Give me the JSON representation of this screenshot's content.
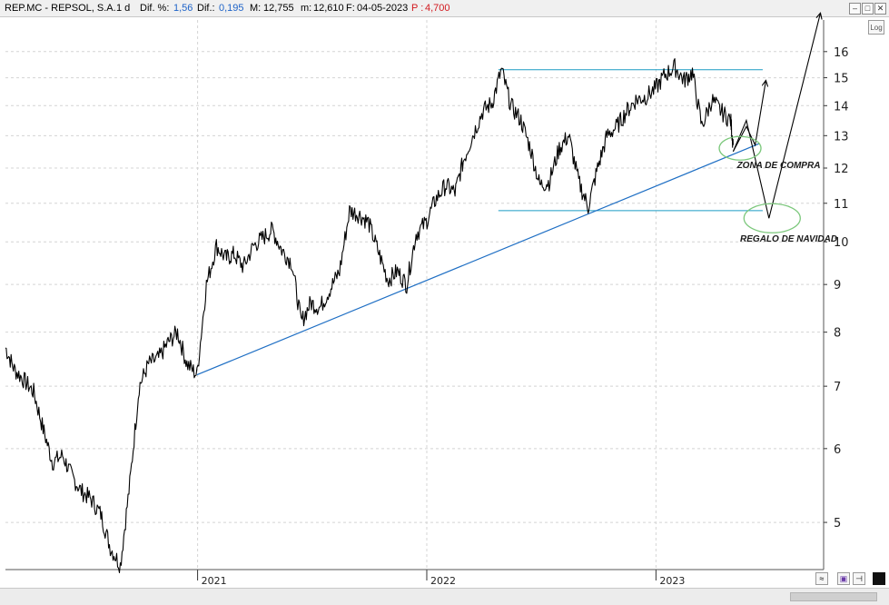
{
  "header": {
    "symbol": "REP.MC - REPSOL, S.A.",
    "interval": "1 d",
    "dif_pct_label": "Dif. %:",
    "dif_pct_value": "1,56",
    "dif_label": "Dif.:",
    "dif_value": "0,195",
    "max_label": "M:",
    "max_value": "12,755",
    "min_label": "m:",
    "min_value": "12,610",
    "date_label": "F:",
    "date_value": "04-05-2023",
    "p_label": "P :",
    "p_value": "4,700"
  },
  "toolbar": {
    "log_label": "Log"
  },
  "colors": {
    "price": "#000000",
    "trendline": "#1f6fc4",
    "level_lines": "#1a9bc4",
    "annotation_ellipse": "#7cc87c",
    "header_blue": "#1e63c8",
    "header_red": "#d2191e"
  },
  "chart_data": {
    "type": "line",
    "title": "",
    "xlabel": "",
    "ylabel": "",
    "y_scale": "log",
    "ylim": [
      4.45,
      17.3
    ],
    "xlim": [
      "2020-03-01",
      "2023-09-25"
    ],
    "y_ticks": [
      5,
      6,
      7,
      8,
      9,
      10,
      11,
      12,
      13,
      14,
      15,
      16
    ],
    "x_ticks": [
      {
        "label": "2021",
        "date": "2021-01-01"
      },
      {
        "label": "2022",
        "date": "2022-01-01"
      },
      {
        "label": "2023",
        "date": "2023-01-01"
      }
    ],
    "grid": true,
    "series": [
      {
        "x": [
          "2020-03-01",
          "2020-03-15",
          "2020-03-31",
          "2020-04-15",
          "2020-04-30",
          "2020-05-15",
          "2020-05-31",
          "2020-06-15",
          "2020-06-30",
          "2020-07-15",
          "2020-07-31",
          "2020-08-15",
          "2020-08-31",
          "2020-09-15",
          "2020-09-30",
          "2020-10-15",
          "2020-10-31",
          "2020-11-15",
          "2020-11-30",
          "2020-12-15",
          "2020-12-31",
          "2021-01-15",
          "2021-01-31",
          "2021-02-15",
          "2021-02-28",
          "2021-03-15",
          "2021-03-31",
          "2021-04-15",
          "2021-04-30",
          "2021-05-15",
          "2021-05-31",
          "2021-06-15",
          "2021-06-30",
          "2021-07-15",
          "2021-07-31",
          "2021-08-15",
          "2021-08-31",
          "2021-09-15",
          "2021-09-30",
          "2021-10-15",
          "2021-10-31",
          "2021-11-15",
          "2021-11-30",
          "2021-12-15",
          "2021-12-31",
          "2022-01-15",
          "2022-01-31",
          "2022-02-15",
          "2022-02-28",
          "2022-03-15",
          "2022-03-31",
          "2022-04-15",
          "2022-04-30",
          "2022-05-15",
          "2022-05-31",
          "2022-06-15",
          "2022-06-30",
          "2022-07-15",
          "2022-07-31",
          "2022-08-15",
          "2022-08-31",
          "2022-09-15",
          "2022-09-30",
          "2022-10-15",
          "2022-10-31",
          "2022-11-15",
          "2022-11-30",
          "2022-12-15",
          "2022-12-31",
          "2023-01-15",
          "2023-01-31",
          "2023-02-15",
          "2023-02-28",
          "2023-03-15",
          "2023-03-31",
          "2023-04-15",
          "2023-04-30",
          "2023-05-04"
        ],
        "y": [
          7.7,
          7.3,
          7.1,
          6.9,
          6.3,
          5.8,
          5.9,
          5.6,
          5.4,
          5.3,
          5.1,
          4.7,
          4.5,
          5.5,
          7.0,
          7.4,
          7.5,
          7.8,
          8.0,
          7.4,
          7.2,
          9.0,
          9.9,
          9.6,
          9.7,
          9.4,
          9.9,
          10.1,
          10.3,
          9.8,
          9.5,
          8.2,
          8.6,
          8.5,
          8.9,
          9.3,
          10.8,
          10.7,
          10.5,
          9.8,
          9.1,
          9.3,
          9.0,
          10.2,
          10.5,
          11.1,
          11.5,
          11.3,
          12.2,
          13.0,
          13.8,
          14.1,
          15.3,
          14.0,
          13.5,
          12.6,
          11.5,
          11.6,
          12.6,
          13.0,
          11.6,
          10.9,
          12.0,
          13.0,
          13.3,
          13.8,
          14.2,
          14.3,
          14.6,
          15.1,
          15.4,
          14.9,
          15.2,
          13.3,
          14.2,
          13.8,
          13.5,
          12.7
        ]
      }
    ],
    "lines": [
      {
        "role": "trendline",
        "from": {
          "x": "2020-12-31",
          "y": 7.2
        },
        "to": {
          "x": "2023-06-15",
          "y": 12.75
        }
      },
      {
        "role": "resistance",
        "y": 15.3,
        "x_from": "2022-04-25",
        "x_to": "2023-06-20"
      },
      {
        "role": "support",
        "y": 10.8,
        "x_from": "2022-04-25",
        "x_to": "2023-06-20"
      }
    ],
    "forecast_path": [
      {
        "x": "2023-05-04",
        "y": 12.5
      },
      {
        "x": "2023-05-25",
        "y": 13.3
      },
      {
        "x": "2023-06-08",
        "y": 12.7
      },
      {
        "x": "2023-06-25",
        "y": 14.9
      }
    ],
    "forecast_alt_path": [
      {
        "x": "2023-05-04",
        "y": 12.5
      },
      {
        "x": "2023-05-25",
        "y": 13.5
      },
      {
        "x": "2023-06-30",
        "y": 10.6
      },
      {
        "x": "2023-09-20",
        "y": 17.6
      }
    ],
    "annotations": [
      {
        "text": "ZONA DE COMPRA",
        "x": "2023-05-10",
        "y": 12.0
      },
      {
        "text": "REGALO DE NAVIDAD",
        "x": "2023-05-15",
        "y": 10.0
      }
    ],
    "highlights": [
      {
        "x": "2023-05-15",
        "y": 12.6,
        "label": "ZONA DE COMPRA"
      },
      {
        "x": "2023-07-05",
        "y": 10.6,
        "label": "REGALO DE NAVIDAD"
      }
    ]
  }
}
